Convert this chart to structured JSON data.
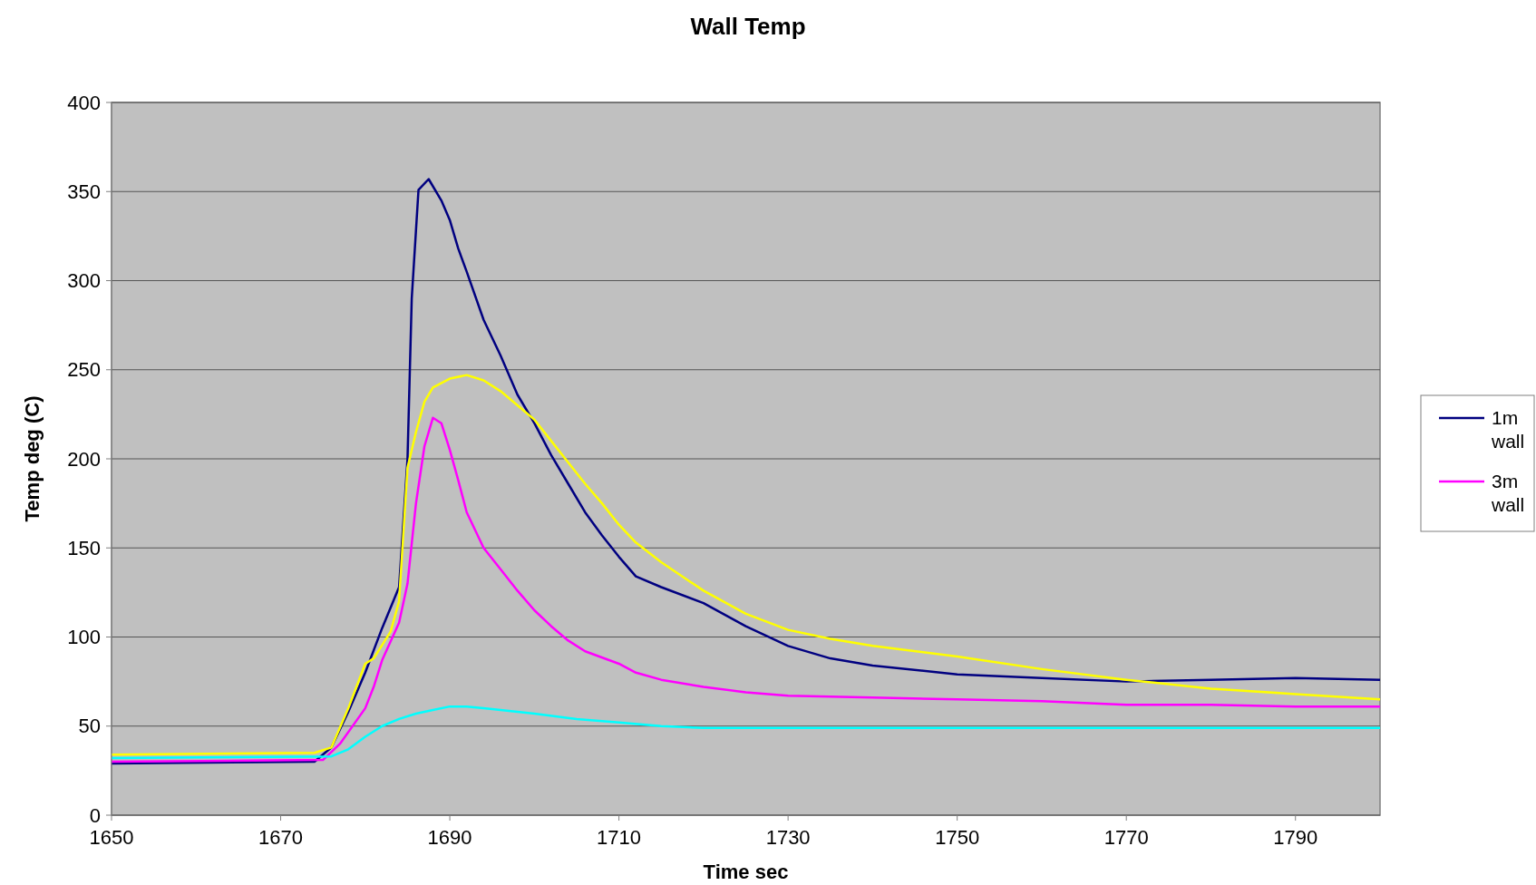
{
  "chart_data": {
    "type": "line",
    "title": "Wall Temp",
    "xlabel": "Time sec",
    "ylabel": "Temp deg (C)",
    "xlim": [
      1650,
      1800
    ],
    "xticks": [
      1650,
      1670,
      1690,
      1710,
      1730,
      1750,
      1770,
      1790
    ],
    "ylim": [
      0,
      400
    ],
    "yticks": [
      0,
      50,
      100,
      150,
      200,
      250,
      300,
      350,
      400
    ],
    "grid": "y",
    "legend": "right",
    "marker": "none",
    "line_style": "solid",
    "series": [
      {
        "name": "1m wall",
        "color": "#000080",
        "x": [
          1650,
          1674,
          1676,
          1678,
          1680,
          1682,
          1684,
          1685,
          1685.5,
          1686.3,
          1687.5,
          1689,
          1690,
          1691,
          1692,
          1694,
          1696,
          1698,
          1700,
          1702,
          1704,
          1706,
          1708,
          1710,
          1712,
          1715,
          1720,
          1725,
          1730,
          1735,
          1740,
          1750,
          1760,
          1770,
          1780,
          1790,
          1800
        ],
        "values": [
          29,
          30,
          38,
          58,
          80,
          105,
          128,
          200,
          290,
          351,
          357,
          345,
          334,
          318,
          305,
          278,
          258,
          236,
          220,
          202,
          186,
          170,
          157,
          145,
          134,
          128,
          119,
          106,
          95,
          88,
          84,
          79,
          77,
          75,
          76,
          77,
          76
        ]
      },
      {
        "name": "3m wall",
        "color": "#ff00ff",
        "x": [
          1650,
          1675,
          1677,
          1680,
          1681,
          1682,
          1684,
          1685,
          1686,
          1687,
          1688,
          1689,
          1690,
          1691,
          1692,
          1694,
          1696,
          1698,
          1700,
          1702,
          1704,
          1706,
          1710,
          1712,
          1715,
          1720,
          1725,
          1730,
          1740,
          1750,
          1760,
          1770,
          1780,
          1790,
          1800
        ],
        "values": [
          30,
          31,
          40,
          60,
          72,
          87,
          108,
          130,
          175,
          207,
          223,
          220,
          205,
          188,
          170,
          150,
          138,
          126,
          115,
          106,
          98,
          92,
          85,
          80,
          76,
          72,
          69,
          67,
          66,
          65,
          64,
          62,
          62,
          61,
          61
        ]
      },
      {
        "color": "#ffff00",
        "x": [
          1650,
          1674,
          1676,
          1678,
          1680,
          1681,
          1683,
          1684,
          1685,
          1686,
          1687,
          1688,
          1690,
          1692,
          1694,
          1696,
          1698,
          1700,
          1702,
          1704,
          1706,
          1708,
          1710,
          1712,
          1715,
          1720,
          1725,
          1730,
          1735,
          1740,
          1750,
          1760,
          1770,
          1780,
          1790,
          1800
        ],
        "values": [
          34,
          35,
          38,
          60,
          85,
          88,
          103,
          120,
          195,
          215,
          232,
          240,
          245,
          247,
          244,
          238,
          230,
          222,
          210,
          198,
          186,
          175,
          163,
          153,
          142,
          126,
          113,
          104,
          99,
          95,
          89,
          82,
          76,
          71,
          68,
          65
        ]
      },
      {
        "color": "#00ffff",
        "x": [
          1650,
          1676,
          1678,
          1680,
          1682,
          1684,
          1686,
          1688,
          1690,
          1692,
          1694,
          1696,
          1700,
          1705,
          1710,
          1715,
          1720,
          1740,
          1760,
          1780,
          1800
        ],
        "values": [
          32,
          33,
          37,
          44,
          50,
          54,
          57,
          59,
          61,
          61,
          60,
          59,
          57,
          54,
          52,
          50,
          49,
          49,
          49,
          49,
          49
        ]
      }
    ]
  }
}
